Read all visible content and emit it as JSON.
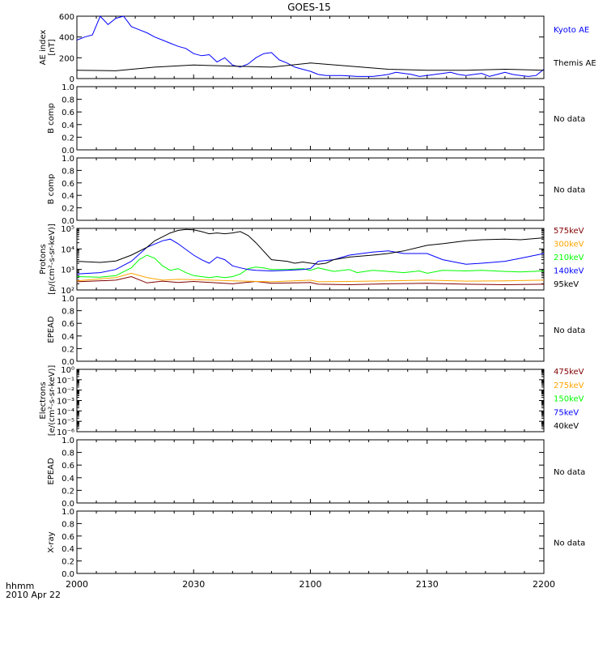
{
  "figure": {
    "title": "GOES-15",
    "time_label": "hhmm",
    "date_label": "2010 Apr 22",
    "x_ticks": [
      "2000",
      "2030",
      "2100",
      "2130",
      "2200"
    ]
  },
  "chart_data": [
    {
      "type": "line",
      "panel": "ae",
      "ylabel": [
        "AE index",
        "[nT]"
      ],
      "ylim": [
        0,
        600
      ],
      "yticks": [
        "0",
        "200",
        "400",
        "600"
      ],
      "x_range_min": [
        0,
        120
      ],
      "series": [
        {
          "name": "Kyoto AE",
          "color": "#0000ff",
          "x": [
            0,
            2,
            4,
            6,
            8,
            10,
            12,
            14,
            16,
            18,
            20,
            22,
            24,
            26,
            28,
            30,
            32,
            34,
            36,
            38,
            40,
            42,
            44,
            46,
            48,
            50,
            52,
            54,
            56,
            58,
            60,
            62,
            64,
            66,
            68,
            70,
            72,
            74,
            76,
            78,
            80,
            82,
            84,
            86,
            88,
            90,
            92,
            94,
            96,
            98,
            100,
            102,
            104,
            106,
            108,
            110,
            112,
            114,
            116,
            118,
            120
          ],
          "y": [
            370,
            400,
            420,
            600,
            520,
            580,
            600,
            500,
            470,
            440,
            400,
            370,
            340,
            310,
            290,
            240,
            220,
            230,
            160,
            200,
            130,
            110,
            140,
            200,
            240,
            250,
            180,
            150,
            110,
            90,
            70,
            40,
            30,
            30,
            30,
            25,
            20,
            20,
            20,
            30,
            40,
            60,
            50,
            40,
            20,
            30,
            40,
            50,
            60,
            40,
            30,
            40,
            50,
            20,
            40,
            60,
            40,
            30,
            20,
            30,
            90
          ]
        },
        {
          "name": "Themis AE",
          "color": "#000000",
          "x": [
            0,
            10,
            20,
            30,
            40,
            50,
            60,
            70,
            80,
            90,
            100,
            110,
            120
          ],
          "y": [
            80,
            75,
            110,
            130,
            120,
            110,
            150,
            120,
            90,
            80,
            80,
            90,
            80
          ]
        }
      ]
    },
    {
      "type": "line",
      "panel": "bcomp1",
      "ylabel": [
        "B comp"
      ],
      "ylim": [
        0,
        1
      ],
      "yticks": [
        "0.0",
        "0.2",
        "0.4",
        "0.6",
        "0.8",
        "1.0"
      ],
      "status": "No data"
    },
    {
      "type": "line",
      "panel": "bcomp2",
      "ylabel": [
        "B comp"
      ],
      "ylim": [
        0,
        1
      ],
      "yticks": [
        "0.0",
        "0.2",
        "0.4",
        "0.6",
        "0.8",
        "1.0"
      ],
      "status": "No data"
    },
    {
      "type": "line",
      "panel": "protons",
      "ylabel": [
        "Protons",
        "[p/(cm²-s-sr-keV)]"
      ],
      "log_scale": true,
      "ylim": [
        100,
        100000
      ],
      "yticks": [
        "10²",
        "10³",
        "10⁴",
        "10⁵"
      ],
      "series": [
        {
          "name": "575keV",
          "color": "#800000",
          "x": [
            0,
            10,
            14,
            18,
            22,
            26,
            30,
            40,
            46,
            50,
            60,
            62,
            70,
            80,
            90,
            100,
            110,
            120
          ],
          "y": [
            250,
            300,
            450,
            220,
            270,
            230,
            260,
            200,
            260,
            210,
            230,
            190,
            180,
            200,
            210,
            190,
            180,
            190
          ]
        },
        {
          "name": "300keV",
          "color": "#ffa500",
          "x": [
            0,
            10,
            14,
            18,
            22,
            26,
            30,
            40,
            50,
            60,
            62,
            70,
            80,
            90,
            100,
            110,
            120
          ],
          "y": [
            280,
            400,
            650,
            400,
            300,
            330,
            320,
            280,
            250,
            300,
            250,
            260,
            280,
            300,
            270,
            280,
            300
          ]
        },
        {
          "name": "210keV",
          "color": "#00ff00",
          "x": [
            0,
            6,
            10,
            14,
            16,
            18,
            20,
            22,
            24,
            26,
            28,
            30,
            32,
            34,
            36,
            38,
            40,
            42,
            44,
            46,
            48,
            50,
            54,
            58,
            60,
            62,
            66,
            70,
            72,
            76,
            80,
            84,
            88,
            90,
            94,
            100,
            104,
            110,
            114,
            120
          ],
          "y": [
            450,
            420,
            500,
            1200,
            3000,
            5000,
            3500,
            1500,
            900,
            1100,
            700,
            500,
            450,
            400,
            450,
            400,
            450,
            600,
            1100,
            1300,
            1200,
            1000,
            1000,
            1100,
            900,
            1200,
            800,
            1000,
            700,
            900,
            800,
            700,
            850,
            650,
            900,
            850,
            900,
            800,
            750,
            850
          ]
        },
        {
          "name": "140keV",
          "color": "#0000ff",
          "x": [
            0,
            6,
            10,
            14,
            18,
            22,
            24,
            26,
            30,
            32,
            34,
            36,
            38,
            40,
            42,
            44,
            46,
            50,
            54,
            58,
            60,
            62,
            66,
            70,
            76,
            80,
            84,
            90,
            94,
            100,
            104,
            110,
            114,
            120
          ],
          "y": [
            600,
            700,
            1000,
            2500,
            12000,
            25000,
            30000,
            18000,
            5000,
            3000,
            2000,
            4000,
            3000,
            1500,
            1200,
            1000,
            900,
            850,
            900,
            1000,
            1100,
            2500,
            3000,
            5000,
            7000,
            8000,
            6000,
            6000,
            3000,
            1800,
            2000,
            2500,
            3500,
            6000
          ]
        },
        {
          "name": "95keV",
          "color": "#000000",
          "x": [
            0,
            6,
            10,
            14,
            18,
            20,
            24,
            26,
            28,
            30,
            32,
            34,
            36,
            38,
            40,
            42,
            44,
            46,
            50,
            54,
            56,
            58,
            62,
            64,
            66,
            70,
            76,
            80,
            84,
            90,
            94,
            100,
            104,
            110,
            114,
            120
          ],
          "y": [
            2500,
            2200,
            2600,
            5000,
            12000,
            25000,
            60000,
            80000,
            90000,
            85000,
            70000,
            55000,
            60000,
            55000,
            60000,
            70000,
            45000,
            20000,
            3000,
            2500,
            2000,
            2300,
            1800,
            2000,
            3000,
            4000,
            5000,
            6000,
            8000,
            15000,
            18000,
            25000,
            28000,
            30000,
            28000,
            35000
          ]
        }
      ]
    },
    {
      "type": "line",
      "panel": "epead1",
      "ylabel": [
        "EPEAD"
      ],
      "ylim": [
        0,
        1
      ],
      "yticks": [
        "0.0",
        "0.2",
        "0.4",
        "0.6",
        "0.8",
        "1.0"
      ],
      "status": "No data"
    },
    {
      "type": "line",
      "panel": "electrons",
      "ylabel": [
        "Electrons",
        "[e/(cm²-s-sr-keV)]"
      ],
      "log_scale": true,
      "ylim": [
        1e-06,
        1
      ],
      "yticks": [
        "10⁻⁶",
        "10⁻⁵",
        "10⁻⁴",
        "10⁻³",
        "10⁻²",
        "10⁻¹",
        "10⁰"
      ],
      "legend": [
        {
          "name": "475keV",
          "color": "#800000"
        },
        {
          "name": "275keV",
          "color": "#ffa500"
        },
        {
          "name": "150keV",
          "color": "#00ff00"
        },
        {
          "name": "75keV",
          "color": "#0000ff"
        },
        {
          "name": "40keV",
          "color": "#000000"
        }
      ]
    },
    {
      "type": "line",
      "panel": "epead2",
      "ylabel": [
        "EPEAD"
      ],
      "ylim": [
        0,
        1
      ],
      "yticks": [
        "0.0",
        "0.2",
        "0.4",
        "0.6",
        "0.8",
        "1.0"
      ],
      "status": "No data"
    },
    {
      "type": "line",
      "panel": "xray",
      "ylabel": [
        "X-ray"
      ],
      "ylim": [
        0,
        1
      ],
      "yticks": [
        "0.0",
        "0.2",
        "0.4",
        "0.6",
        "0.8",
        "1.0"
      ],
      "status": "No data"
    }
  ]
}
